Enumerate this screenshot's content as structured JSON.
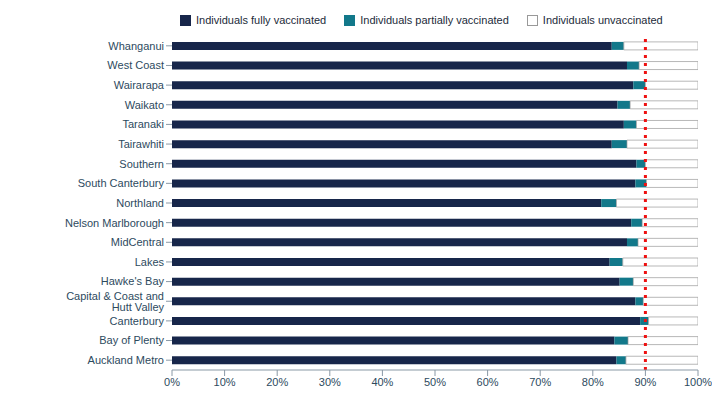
{
  "chart_data": {
    "type": "bar",
    "orientation": "horizontal",
    "stacked": true,
    "grid": false,
    "legend": "top-left",
    "categories": [
      "Whanganui",
      "West Coast",
      "Wairarapa",
      "Waikato",
      "Taranaki",
      "Tairawhiti",
      "Southern",
      "South Canterbury",
      "Northland",
      "Nelson Marlborough",
      "MidCentral",
      "Lakes",
      "Hawke's Bay",
      "Capital & Coast and Hutt Valley",
      "Canterbury",
      "Bay of Plenty",
      "Auckland Metro"
    ],
    "series": [
      {
        "name": "Individuals fully vaccinated",
        "color": "#17264a",
        "values": [
          83.6,
          86.5,
          87.7,
          84.7,
          85.9,
          83.6,
          88.3,
          88.1,
          81.6,
          87.3,
          86.5,
          83.2,
          85.1,
          88.1,
          89.0,
          84.1,
          84.5
        ]
      },
      {
        "name": "Individuals partially vaccinated",
        "color": "#12788a",
        "values": [
          2.3,
          2.3,
          2.3,
          2.4,
          2.4,
          2.9,
          1.7,
          2.1,
          2.9,
          2.1,
          2.1,
          2.5,
          2.6,
          1.5,
          1.6,
          2.6,
          1.8
        ]
      },
      {
        "name": "Individuals unvaccinated",
        "color": "#ffffff",
        "values": [
          14.1,
          11.2,
          10.0,
          12.9,
          11.7,
          13.5,
          10.0,
          9.8,
          15.5,
          10.6,
          11.4,
          14.3,
          12.3,
          10.4,
          9.4,
          13.3,
          13.7
        ]
      }
    ],
    "xlim": [
      0,
      100
    ],
    "xticks": [
      {
        "value": 0,
        "label": "0%"
      },
      {
        "value": 10,
        "label": "10%"
      },
      {
        "value": 20,
        "label": "20%"
      },
      {
        "value": 30,
        "label": "30%"
      },
      {
        "value": 40,
        "label": "40%"
      },
      {
        "value": 50,
        "label": "50%"
      },
      {
        "value": 60,
        "label": "60%"
      },
      {
        "value": 70,
        "label": "70%"
      },
      {
        "value": 80,
        "label": "80%"
      },
      {
        "value": 90,
        "label": "90%"
      },
      {
        "value": 100,
        "label": "100%"
      }
    ],
    "reference_lines": [
      {
        "value": 90,
        "color": "#ee1111",
        "line_style": "dotted"
      }
    ]
  }
}
